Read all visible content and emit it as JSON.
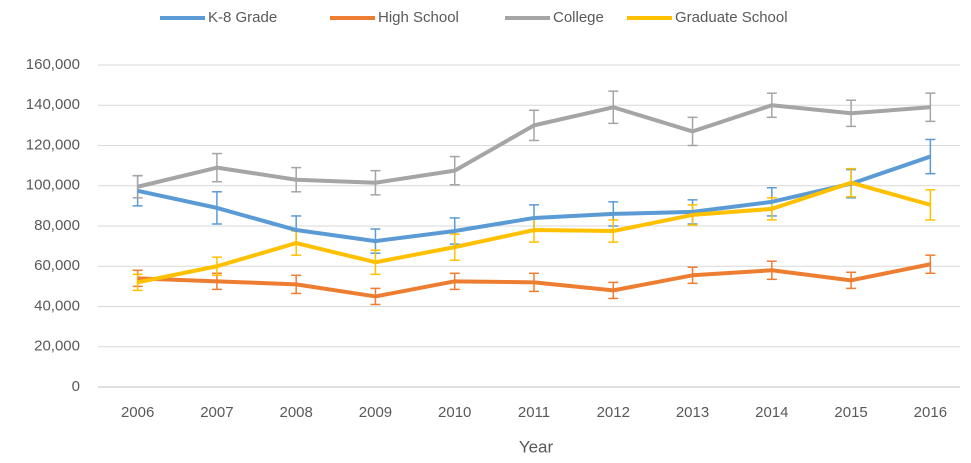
{
  "chart_data": {
    "type": "line",
    "x_label": "Year",
    "categories": [
      "2006",
      "2007",
      "2008",
      "2009",
      "2010",
      "2011",
      "2012",
      "2013",
      "2014",
      "2015",
      "2016"
    ],
    "series": [
      {
        "name": "K-8 Grade",
        "color": "#5b9bd5",
        "values": [
          97500,
          89000,
          78000,
          72500,
          77500,
          84000,
          86000,
          87000,
          92000,
          101000,
          114500
        ],
        "errors": [
          7500,
          8000,
          7000,
          6000,
          6500,
          6500,
          6000,
          6000,
          7000,
          7000,
          8500
        ]
      },
      {
        "name": "High School",
        "color": "#ed7d31",
        "values": [
          54000,
          52500,
          51000,
          45000,
          52500,
          52000,
          48000,
          55500,
          58000,
          53000,
          61000
        ],
        "errors": [
          4000,
          4000,
          4500,
          4000,
          4000,
          4500,
          4000,
          4000,
          4500,
          4000,
          4500
        ]
      },
      {
        "name": "College",
        "color": "#a5a5a5",
        "values": [
          99500,
          109000,
          103000,
          101500,
          107500,
          130000,
          139000,
          127000,
          140000,
          136000,
          139000
        ],
        "errors": [
          5500,
          7000,
          6000,
          6000,
          7000,
          7500,
          8000,
          7000,
          6000,
          6500,
          7000
        ]
      },
      {
        "name": "Graduate School",
        "color": "#ffc000",
        "values": [
          52000,
          60000,
          71500,
          62000,
          69500,
          78000,
          77500,
          85500,
          88500,
          101500,
          90500
        ],
        "errors": [
          4000,
          4500,
          6000,
          6000,
          6500,
          6000,
          5500,
          5000,
          5500,
          7000,
          7500
        ]
      }
    ],
    "ylim": [
      0,
      160000
    ],
    "yticks": [
      0,
      {
        "value": 20000,
        "label": "20,000"
      },
      {
        "value": 40000,
        "label": "40,000"
      },
      {
        "value": 60000,
        "label": "60,000"
      },
      {
        "value": 80000,
        "label": "80,000"
      },
      {
        "value": 100000,
        "label": "100,000"
      },
      {
        "value": 120000,
        "label": "120,000"
      },
      {
        "value": 140000,
        "label": "140,000"
      },
      {
        "value": 160000,
        "label": "160,000"
      }
    ],
    "grid": true,
    "legend": "top"
  }
}
